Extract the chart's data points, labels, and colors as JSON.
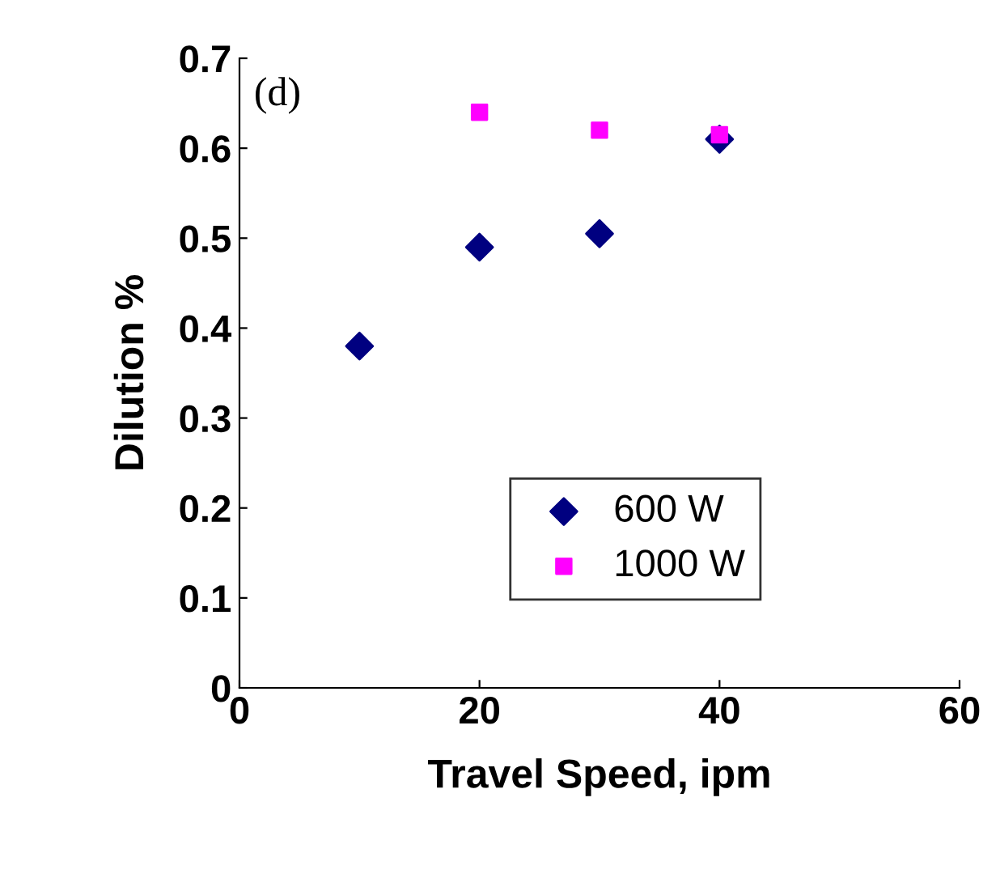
{
  "chart_data": {
    "type": "scatter",
    "xlabel": "Travel Speed, ipm",
    "ylabel": "Dilution %",
    "annotations": [
      "(d)"
    ],
    "series": [
      {
        "name": "600 W",
        "color": "#000080",
        "marker": "diamond",
        "x": [
          10,
          20,
          30,
          40
        ],
        "values": [
          0.38,
          0.49,
          0.505,
          0.61
        ]
      },
      {
        "name": "1000 W",
        "color": "#ff00ff",
        "marker": "square",
        "x": [
          20,
          30,
          40
        ],
        "values": [
          0.64,
          0.62,
          0.615
        ]
      }
    ],
    "xlim": [
      0,
      60
    ],
    "xticks": [
      0,
      20,
      40,
      60
    ],
    "ylim": [
      0,
      0.7
    ],
    "yticks": [
      0,
      0.1,
      0.2,
      0.3,
      0.4,
      0.5,
      0.6,
      0.7
    ],
    "grid": false,
    "legend": "bottom right"
  }
}
